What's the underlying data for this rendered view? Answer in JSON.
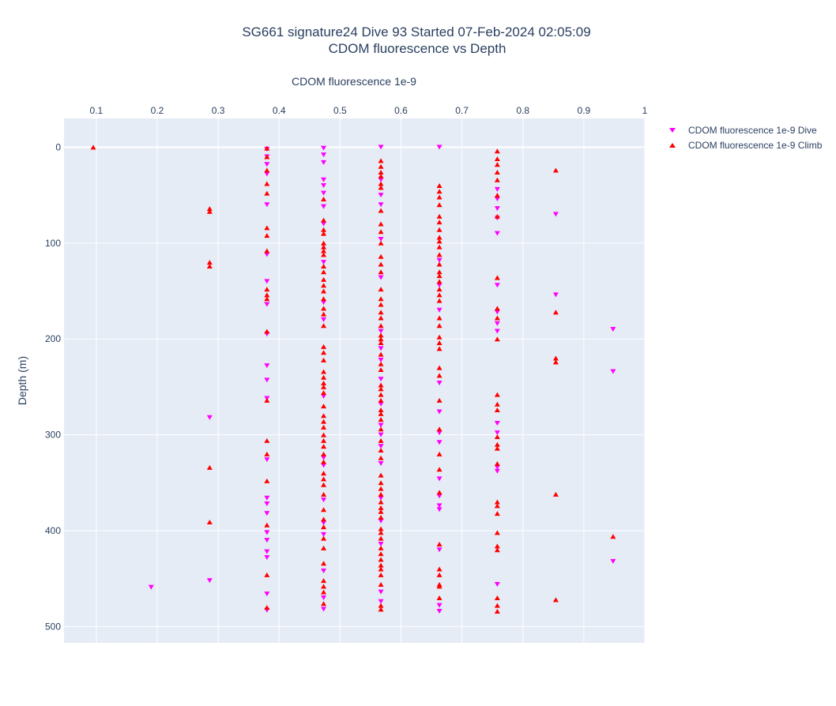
{
  "chart_data": {
    "type": "scatter",
    "title_line1": "SG661 signature24 Dive 93 Started 07-Feb-2024 02:05:09",
    "title_line2": "CDOM fluorescence vs Depth",
    "xlabel": "CDOM fluorescence 1e-9",
    "ylabel": "Depth (m)",
    "x_ticks": [
      "0.1",
      "0.2",
      "0.3",
      "0.4",
      "0.5",
      "0.6",
      "0.7",
      "0.8",
      "0.9",
      "1"
    ],
    "y_ticks": [
      "0",
      "100",
      "200",
      "300",
      "400",
      "500"
    ],
    "xlim": [
      0.047,
      1.0
    ],
    "ylim": [
      517,
      -30
    ],
    "x_axis_position": "top",
    "y_reversed": true,
    "grid": true,
    "plot_bgcolor": "#e5ecf6",
    "legend_placement": "top-right",
    "series": [
      {
        "name": "CDOM fluorescence 1e-9 Dive",
        "marker": "triangle-down",
        "color": "#ff00ff",
        "points": [
          [
            0.38,
            2
          ],
          [
            0.38,
            10
          ],
          [
            0.38,
            18
          ],
          [
            0.38,
            28
          ],
          [
            0.38,
            60
          ],
          [
            0.38,
            112
          ],
          [
            0.38,
            140
          ],
          [
            0.38,
            164
          ],
          [
            0.38,
            195
          ],
          [
            0.38,
            228
          ],
          [
            0.38,
            243
          ],
          [
            0.38,
            262
          ],
          [
            0.38,
            326
          ],
          [
            0.38,
            366
          ],
          [
            0.38,
            372
          ],
          [
            0.38,
            382
          ],
          [
            0.38,
            402
          ],
          [
            0.38,
            410
          ],
          [
            0.38,
            422
          ],
          [
            0.38,
            428
          ],
          [
            0.38,
            466
          ],
          [
            0.38,
            483
          ],
          [
            0.473,
            1
          ],
          [
            0.473,
            8
          ],
          [
            0.473,
            16
          ],
          [
            0.473,
            34
          ],
          [
            0.473,
            40
          ],
          [
            0.473,
            48
          ],
          [
            0.473,
            62
          ],
          [
            0.473,
            80
          ],
          [
            0.473,
            120
          ],
          [
            0.473,
            162
          ],
          [
            0.473,
            180
          ],
          [
            0.473,
            260
          ],
          [
            0.473,
            324
          ],
          [
            0.473,
            332
          ],
          [
            0.473,
            368
          ],
          [
            0.473,
            392
          ],
          [
            0.473,
            404
          ],
          [
            0.473,
            442
          ],
          [
            0.473,
            470
          ],
          [
            0.473,
            482
          ],
          [
            0.567,
            0
          ],
          [
            0.567,
            34
          ],
          [
            0.567,
            50
          ],
          [
            0.567,
            60
          ],
          [
            0.567,
            96
          ],
          [
            0.567,
            136
          ],
          [
            0.567,
            192
          ],
          [
            0.567,
            210
          ],
          [
            0.567,
            222
          ],
          [
            0.567,
            242
          ],
          [
            0.567,
            268
          ],
          [
            0.567,
            290
          ],
          [
            0.567,
            300
          ],
          [
            0.567,
            312
          ],
          [
            0.567,
            330
          ],
          [
            0.567,
            366
          ],
          [
            0.567,
            390
          ],
          [
            0.567,
            414
          ],
          [
            0.567,
            464
          ],
          [
            0.567,
            474
          ],
          [
            0.663,
            0
          ],
          [
            0.663,
            118
          ],
          [
            0.663,
            144
          ],
          [
            0.663,
            170
          ],
          [
            0.663,
            246
          ],
          [
            0.663,
            276
          ],
          [
            0.663,
            298
          ],
          [
            0.663,
            308
          ],
          [
            0.663,
            346
          ],
          [
            0.663,
            364
          ],
          [
            0.663,
            374
          ],
          [
            0.663,
            378
          ],
          [
            0.663,
            420
          ],
          [
            0.663,
            478
          ],
          [
            0.663,
            484
          ],
          [
            0.758,
            44
          ],
          [
            0.758,
            54
          ],
          [
            0.758,
            64
          ],
          [
            0.758,
            74
          ],
          [
            0.758,
            90
          ],
          [
            0.758,
            144
          ],
          [
            0.758,
            172
          ],
          [
            0.758,
            184
          ],
          [
            0.758,
            192
          ],
          [
            0.758,
            288
          ],
          [
            0.758,
            298
          ],
          [
            0.758,
            334
          ],
          [
            0.758,
            338
          ],
          [
            0.758,
            456
          ],
          [
            0.854,
            70
          ],
          [
            0.854,
            154
          ],
          [
            0.948,
            190
          ],
          [
            0.948,
            234
          ],
          [
            0.948,
            432
          ],
          [
            0.286,
            282
          ],
          [
            0.286,
            452
          ],
          [
            0.19,
            459
          ]
        ]
      },
      {
        "name": "CDOM fluorescence 1e-9 Climb",
        "marker": "triangle-up",
        "color": "#ff0000",
        "points": [
          [
            0.095,
            0
          ],
          [
            0.286,
            64
          ],
          [
            0.286,
            67
          ],
          [
            0.286,
            120
          ],
          [
            0.286,
            124
          ],
          [
            0.286,
            334
          ],
          [
            0.286,
            391
          ],
          [
            0.38,
            1
          ],
          [
            0.38,
            10
          ],
          [
            0.38,
            24
          ],
          [
            0.38,
            38
          ],
          [
            0.38,
            48
          ],
          [
            0.38,
            84
          ],
          [
            0.38,
            92
          ],
          [
            0.38,
            108
          ],
          [
            0.38,
            148
          ],
          [
            0.38,
            154
          ],
          [
            0.38,
            158
          ],
          [
            0.38,
            192
          ],
          [
            0.38,
            264
          ],
          [
            0.38,
            306
          ],
          [
            0.38,
            320
          ],
          [
            0.38,
            348
          ],
          [
            0.38,
            394
          ],
          [
            0.38,
            446
          ],
          [
            0.38,
            480
          ],
          [
            0.473,
            54
          ],
          [
            0.473,
            76
          ],
          [
            0.473,
            86
          ],
          [
            0.473,
            90
          ],
          [
            0.473,
            100
          ],
          [
            0.473,
            104
          ],
          [
            0.473,
            108
          ],
          [
            0.473,
            112
          ],
          [
            0.473,
            124
          ],
          [
            0.473,
            130
          ],
          [
            0.473,
            138
          ],
          [
            0.473,
            144
          ],
          [
            0.473,
            150
          ],
          [
            0.473,
            158
          ],
          [
            0.473,
            168
          ],
          [
            0.473,
            174
          ],
          [
            0.473,
            186
          ],
          [
            0.473,
            208
          ],
          [
            0.473,
            214
          ],
          [
            0.473,
            222
          ],
          [
            0.473,
            234
          ],
          [
            0.473,
            240
          ],
          [
            0.473,
            246
          ],
          [
            0.473,
            250
          ],
          [
            0.473,
            256
          ],
          [
            0.473,
            270
          ],
          [
            0.473,
            280
          ],
          [
            0.473,
            286
          ],
          [
            0.473,
            292
          ],
          [
            0.473,
            300
          ],
          [
            0.473,
            306
          ],
          [
            0.473,
            312
          ],
          [
            0.473,
            320
          ],
          [
            0.473,
            328
          ],
          [
            0.473,
            340
          ],
          [
            0.473,
            346
          ],
          [
            0.473,
            352
          ],
          [
            0.473,
            362
          ],
          [
            0.473,
            378
          ],
          [
            0.473,
            388
          ],
          [
            0.473,
            396
          ],
          [
            0.473,
            408
          ],
          [
            0.473,
            418
          ],
          [
            0.473,
            434
          ],
          [
            0.473,
            452
          ],
          [
            0.473,
            458
          ],
          [
            0.473,
            464
          ],
          [
            0.473,
            476
          ],
          [
            0.567,
            14
          ],
          [
            0.567,
            20
          ],
          [
            0.567,
            26
          ],
          [
            0.567,
            30
          ],
          [
            0.567,
            38
          ],
          [
            0.567,
            42
          ],
          [
            0.567,
            66
          ],
          [
            0.567,
            80
          ],
          [
            0.567,
            88
          ],
          [
            0.567,
            100
          ],
          [
            0.567,
            114
          ],
          [
            0.567,
            122
          ],
          [
            0.567,
            130
          ],
          [
            0.567,
            148
          ],
          [
            0.567,
            158
          ],
          [
            0.567,
            164
          ],
          [
            0.567,
            172
          ],
          [
            0.567,
            178
          ],
          [
            0.567,
            186
          ],
          [
            0.567,
            196
          ],
          [
            0.567,
            200
          ],
          [
            0.567,
            204
          ],
          [
            0.567,
            216
          ],
          [
            0.567,
            226
          ],
          [
            0.567,
            232
          ],
          [
            0.567,
            248
          ],
          [
            0.567,
            252
          ],
          [
            0.567,
            258
          ],
          [
            0.567,
            264
          ],
          [
            0.567,
            274
          ],
          [
            0.567,
            278
          ],
          [
            0.567,
            284
          ],
          [
            0.567,
            294
          ],
          [
            0.567,
            306
          ],
          [
            0.567,
            316
          ],
          [
            0.567,
            324
          ],
          [
            0.567,
            342
          ],
          [
            0.567,
            350
          ],
          [
            0.567,
            356
          ],
          [
            0.567,
            362
          ],
          [
            0.567,
            370
          ],
          [
            0.567,
            376
          ],
          [
            0.567,
            380
          ],
          [
            0.567,
            386
          ],
          [
            0.567,
            398
          ],
          [
            0.567,
            402
          ],
          [
            0.567,
            408
          ],
          [
            0.567,
            418
          ],
          [
            0.567,
            424
          ],
          [
            0.567,
            430
          ],
          [
            0.567,
            436
          ],
          [
            0.567,
            440
          ],
          [
            0.567,
            446
          ],
          [
            0.567,
            456
          ],
          [
            0.567,
            478
          ],
          [
            0.567,
            482
          ],
          [
            0.663,
            40
          ],
          [
            0.663,
            46
          ],
          [
            0.663,
            52
          ],
          [
            0.663,
            60
          ],
          [
            0.663,
            72
          ],
          [
            0.663,
            78
          ],
          [
            0.663,
            86
          ],
          [
            0.663,
            94
          ],
          [
            0.663,
            98
          ],
          [
            0.663,
            104
          ],
          [
            0.663,
            112
          ],
          [
            0.663,
            122
          ],
          [
            0.663,
            130
          ],
          [
            0.663,
            134
          ],
          [
            0.663,
            140
          ],
          [
            0.663,
            148
          ],
          [
            0.663,
            154
          ],
          [
            0.663,
            160
          ],
          [
            0.663,
            178
          ],
          [
            0.663,
            186
          ],
          [
            0.663,
            198
          ],
          [
            0.663,
            204
          ],
          [
            0.663,
            210
          ],
          [
            0.663,
            230
          ],
          [
            0.663,
            238
          ],
          [
            0.663,
            264
          ],
          [
            0.663,
            294
          ],
          [
            0.663,
            320
          ],
          [
            0.663,
            336
          ],
          [
            0.663,
            360
          ],
          [
            0.663,
            414
          ],
          [
            0.663,
            440
          ],
          [
            0.663,
            446
          ],
          [
            0.663,
            456
          ],
          [
            0.663,
            458
          ],
          [
            0.663,
            470
          ],
          [
            0.758,
            4
          ],
          [
            0.758,
            12
          ],
          [
            0.758,
            18
          ],
          [
            0.758,
            26
          ],
          [
            0.758,
            34
          ],
          [
            0.758,
            50
          ],
          [
            0.758,
            72
          ],
          [
            0.758,
            136
          ],
          [
            0.758,
            168
          ],
          [
            0.758,
            178
          ],
          [
            0.758,
            200
          ],
          [
            0.758,
            258
          ],
          [
            0.758,
            268
          ],
          [
            0.758,
            274
          ],
          [
            0.758,
            302
          ],
          [
            0.758,
            310
          ],
          [
            0.758,
            314
          ],
          [
            0.758,
            330
          ],
          [
            0.758,
            370
          ],
          [
            0.758,
            374
          ],
          [
            0.758,
            382
          ],
          [
            0.758,
            402
          ],
          [
            0.758,
            416
          ],
          [
            0.758,
            420
          ],
          [
            0.758,
            470
          ],
          [
            0.758,
            478
          ],
          [
            0.758,
            484
          ],
          [
            0.854,
            24
          ],
          [
            0.854,
            172
          ],
          [
            0.854,
            220
          ],
          [
            0.854,
            224
          ],
          [
            0.854,
            362
          ],
          [
            0.854,
            472
          ],
          [
            0.948,
            406
          ]
        ]
      }
    ]
  }
}
